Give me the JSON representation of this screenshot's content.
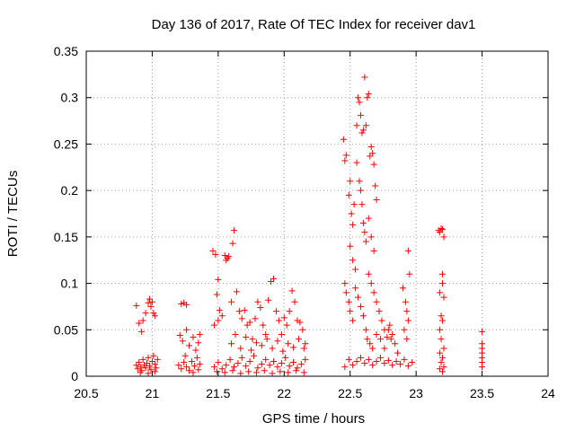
{
  "chart_data": {
    "type": "scatter",
    "title": "Day 136 of 2017, Rate Of TEC Index for receiver dav1",
    "xlabel": "GPS time / hours",
    "ylabel": "ROTI / TECUs",
    "xlim": [
      20.5,
      24
    ],
    "ylim": [
      0,
      0.35
    ],
    "x_ticks": [
      "20.5",
      "21",
      "21.5",
      "22",
      "22.5",
      "23",
      "23.5",
      "24"
    ],
    "y_ticks": [
      "0",
      "0.05",
      "0.1",
      "0.15",
      "0.2",
      "0.25",
      "0.3",
      "0.35"
    ],
    "grid": true,
    "marker": "plus",
    "color": "#ff0000",
    "points": [
      [
        20.88,
        0.076
      ],
      [
        20.9,
        0.057
      ],
      [
        20.92,
        0.048
      ],
      [
        20.93,
        0.06
      ],
      [
        20.95,
        0.068
      ],
      [
        20.97,
        0.079
      ],
      [
        20.98,
        0.083
      ],
      [
        20.99,
        0.075
      ],
      [
        21.0,
        0.08
      ],
      [
        21.01,
        0.068
      ],
      [
        21.02,
        0.065
      ],
      [
        20.88,
        0.012
      ],
      [
        20.89,
        0.008
      ],
      [
        20.9,
        0.015
      ],
      [
        20.91,
        0.01
      ],
      [
        20.92,
        0.006
      ],
      [
        20.93,
        0.018
      ],
      [
        20.94,
        0.012
      ],
      [
        20.95,
        0.009
      ],
      [
        20.96,
        0.014
      ],
      [
        20.97,
        0.02
      ],
      [
        20.98,
        0.011
      ],
      [
        20.99,
        0.007
      ],
      [
        21.0,
        0.016
      ],
      [
        21.01,
        0.022
      ],
      [
        21.02,
        0.013
      ],
      [
        21.03,
        0.009
      ],
      [
        21.04,
        0.018
      ],
      [
        20.91,
        0.004
      ],
      [
        20.97,
        0.003
      ],
      [
        21.02,
        0.005
      ],
      [
        21.22,
        0.078
      ],
      [
        21.24,
        0.079
      ],
      [
        21.26,
        0.077
      ],
      [
        21.21,
        0.044
      ],
      [
        21.23,
        0.038
      ],
      [
        21.26,
        0.05
      ],
      [
        21.28,
        0.033
      ],
      [
        21.31,
        0.042
      ],
      [
        21.33,
        0.028
      ],
      [
        21.35,
        0.036
      ],
      [
        21.36,
        0.045
      ],
      [
        21.2,
        0.012
      ],
      [
        21.22,
        0.008
      ],
      [
        21.24,
        0.015
      ],
      [
        21.26,
        0.01
      ],
      [
        21.28,
        0.006
      ],
      [
        21.3,
        0.016
      ],
      [
        21.32,
        0.011
      ],
      [
        21.34,
        0.02
      ],
      [
        21.36,
        0.013
      ],
      [
        21.25,
        0.022
      ],
      [
        21.31,
        0.004
      ],
      [
        21.35,
        0.007
      ],
      [
        21.46,
        0.135
      ],
      [
        21.48,
        0.131
      ],
      [
        21.55,
        0.13
      ],
      [
        21.56,
        0.125
      ],
      [
        21.57,
        0.127
      ],
      [
        21.58,
        0.129
      ],
      [
        21.62,
        0.157
      ],
      [
        21.61,
        0.143
      ],
      [
        21.5,
        0.104
      ],
      [
        21.49,
        0.088
      ],
      [
        21.5,
        0.06
      ],
      [
        21.47,
        0.055
      ],
      [
        21.51,
        0.071
      ],
      [
        21.53,
        0.065
      ],
      [
        21.6,
        0.08
      ],
      [
        21.64,
        0.091
      ],
      [
        21.66,
        0.07
      ],
      [
        21.68,
        0.062
      ],
      [
        21.7,
        0.071
      ],
      [
        21.72,
        0.055
      ],
      [
        21.74,
        0.058
      ],
      [
        21.76,
        0.04
      ],
      [
        21.78,
        0.062
      ],
      [
        21.8,
        0.08
      ],
      [
        21.82,
        0.074
      ],
      [
        21.84,
        0.055
      ],
      [
        21.86,
        0.045
      ],
      [
        21.88,
        0.082
      ],
      [
        21.9,
        0.102
      ],
      [
        21.92,
        0.105
      ],
      [
        21.94,
        0.07
      ],
      [
        21.96,
        0.06
      ],
      [
        21.98,
        0.045
      ],
      [
        22.0,
        0.063
      ],
      [
        22.02,
        0.055
      ],
      [
        22.04,
        0.07
      ],
      [
        22.06,
        0.092
      ],
      [
        22.08,
        0.08
      ],
      [
        22.1,
        0.06
      ],
      [
        22.12,
        0.058
      ],
      [
        22.14,
        0.05
      ],
      [
        22.16,
        0.035
      ],
      [
        21.6,
        0.035
      ],
      [
        21.63,
        0.045
      ],
      [
        21.67,
        0.03
      ],
      [
        21.71,
        0.042
      ],
      [
        21.75,
        0.028
      ],
      [
        21.79,
        0.036
      ],
      [
        21.83,
        0.033
      ],
      [
        21.87,
        0.04
      ],
      [
        21.91,
        0.03
      ],
      [
        21.95,
        0.038
      ],
      [
        21.99,
        0.027
      ],
      [
        22.03,
        0.035
      ],
      [
        22.07,
        0.031
      ],
      [
        22.11,
        0.04
      ],
      [
        22.15,
        0.03
      ],
      [
        21.47,
        0.01
      ],
      [
        21.5,
        0.015
      ],
      [
        21.53,
        0.008
      ],
      [
        21.56,
        0.012
      ],
      [
        21.59,
        0.018
      ],
      [
        21.62,
        0.01
      ],
      [
        21.65,
        0.014
      ],
      [
        21.68,
        0.02
      ],
      [
        21.71,
        0.011
      ],
      [
        21.74,
        0.016
      ],
      [
        21.77,
        0.022
      ],
      [
        21.8,
        0.009
      ],
      [
        21.83,
        0.013
      ],
      [
        21.86,
        0.018
      ],
      [
        21.89,
        0.012
      ],
      [
        21.92,
        0.016
      ],
      [
        21.95,
        0.01
      ],
      [
        21.98,
        0.014
      ],
      [
        22.01,
        0.02
      ],
      [
        22.04,
        0.011
      ],
      [
        22.07,
        0.015
      ],
      [
        22.1,
        0.009
      ],
      [
        22.13,
        0.013
      ],
      [
        22.16,
        0.018
      ],
      [
        21.49,
        0.005
      ],
      [
        21.55,
        0.004
      ],
      [
        21.61,
        0.006
      ],
      [
        21.67,
        0.003
      ],
      [
        21.73,
        0.005
      ],
      [
        21.79,
        0.004
      ],
      [
        21.85,
        0.006
      ],
      [
        21.91,
        0.003
      ],
      [
        21.97,
        0.005
      ],
      [
        22.03,
        0.004
      ],
      [
        22.09,
        0.006
      ],
      [
        22.15,
        0.004
      ],
      [
        22.45,
        0.255
      ],
      [
        22.46,
        0.232
      ],
      [
        22.47,
        0.238
      ],
      [
        22.49,
        0.195
      ],
      [
        22.5,
        0.21
      ],
      [
        22.51,
        0.175
      ],
      [
        22.52,
        0.163
      ],
      [
        22.53,
        0.185
      ],
      [
        22.55,
        0.27
      ],
      [
        22.56,
        0.3
      ],
      [
        22.57,
        0.295
      ],
      [
        22.58,
        0.281
      ],
      [
        22.59,
        0.262
      ],
      [
        22.6,
        0.265
      ],
      [
        22.61,
        0.322
      ],
      [
        22.62,
        0.27
      ],
      [
        22.63,
        0.3
      ],
      [
        22.64,
        0.304
      ],
      [
        22.65,
        0.237
      ],
      [
        22.66,
        0.247
      ],
      [
        22.67,
        0.24
      ],
      [
        22.68,
        0.228
      ],
      [
        22.69,
        0.205
      ],
      [
        22.7,
        0.19
      ],
      [
        22.55,
        0.23
      ],
      [
        22.57,
        0.21
      ],
      [
        22.58,
        0.2
      ],
      [
        22.59,
        0.185
      ],
      [
        22.6,
        0.165
      ],
      [
        22.61,
        0.155
      ],
      [
        22.62,
        0.145
      ],
      [
        22.64,
        0.17
      ],
      [
        22.66,
        0.15
      ],
      [
        22.68,
        0.135
      ],
      [
        22.5,
        0.14
      ],
      [
        22.52,
        0.125
      ],
      [
        22.54,
        0.115
      ],
      [
        22.46,
        0.1
      ],
      [
        22.47,
        0.09
      ],
      [
        22.49,
        0.08
      ],
      [
        22.5,
        0.07
      ],
      [
        22.52,
        0.06
      ],
      [
        22.54,
        0.095
      ],
      [
        22.56,
        0.085
      ],
      [
        22.58,
        0.075
      ],
      [
        22.6,
        0.065
      ],
      [
        22.62,
        0.05
      ],
      [
        22.64,
        0.11
      ],
      [
        22.66,
        0.1
      ],
      [
        22.68,
        0.09
      ],
      [
        22.7,
        0.08
      ],
      [
        22.72,
        0.07
      ],
      [
        22.74,
        0.06
      ],
      [
        22.76,
        0.05
      ],
      [
        22.78,
        0.042
      ],
      [
        22.8,
        0.055
      ],
      [
        22.82,
        0.045
      ],
      [
        22.84,
        0.035
      ],
      [
        22.86,
        0.025
      ],
      [
        22.63,
        0.04
      ],
      [
        22.65,
        0.035
      ],
      [
        22.67,
        0.03
      ],
      [
        22.7,
        0.045
      ],
      [
        22.73,
        0.04
      ],
      [
        22.76,
        0.03
      ],
      [
        22.79,
        0.05
      ],
      [
        22.81,
        0.04
      ],
      [
        22.9,
        0.095
      ],
      [
        22.92,
        0.08
      ],
      [
        22.93,
        0.07
      ],
      [
        22.94,
        0.06
      ],
      [
        22.91,
        0.05
      ],
      [
        22.93,
        0.04
      ],
      [
        22.95,
        0.11
      ],
      [
        22.94,
        0.135
      ],
      [
        22.46,
        0.01
      ],
      [
        22.49,
        0.018
      ],
      [
        22.52,
        0.012
      ],
      [
        22.55,
        0.016
      ],
      [
        22.58,
        0.02
      ],
      [
        22.61,
        0.014
      ],
      [
        22.64,
        0.018
      ],
      [
        22.67,
        0.012
      ],
      [
        22.7,
        0.016
      ],
      [
        22.73,
        0.02
      ],
      [
        22.76,
        0.014
      ],
      [
        22.79,
        0.017
      ],
      [
        22.82,
        0.012
      ],
      [
        22.85,
        0.016
      ],
      [
        22.88,
        0.013
      ],
      [
        22.91,
        0.018
      ],
      [
        22.94,
        0.011
      ],
      [
        22.97,
        0.015
      ],
      [
        23.17,
        0.157
      ],
      [
        23.18,
        0.155
      ],
      [
        23.19,
        0.159
      ],
      [
        23.2,
        0.158
      ],
      [
        23.21,
        0.15
      ],
      [
        23.2,
        0.11
      ],
      [
        23.2,
        0.1
      ],
      [
        23.18,
        0.09
      ],
      [
        23.21,
        0.085
      ],
      [
        23.19,
        0.065
      ],
      [
        23.2,
        0.06
      ],
      [
        23.18,
        0.05
      ],
      [
        23.19,
        0.04
      ],
      [
        23.21,
        0.03
      ],
      [
        23.18,
        0.025
      ],
      [
        23.2,
        0.02
      ],
      [
        23.19,
        0.015
      ],
      [
        23.21,
        0.01
      ],
      [
        23.18,
        0.008
      ],
      [
        23.2,
        0.005
      ],
      [
        23.5,
        0.048
      ],
      [
        23.5,
        0.035
      ],
      [
        23.5,
        0.03
      ],
      [
        23.5,
        0.025
      ],
      [
        23.5,
        0.02
      ],
      [
        23.5,
        0.015
      ],
      [
        23.5,
        0.01
      ]
    ]
  }
}
